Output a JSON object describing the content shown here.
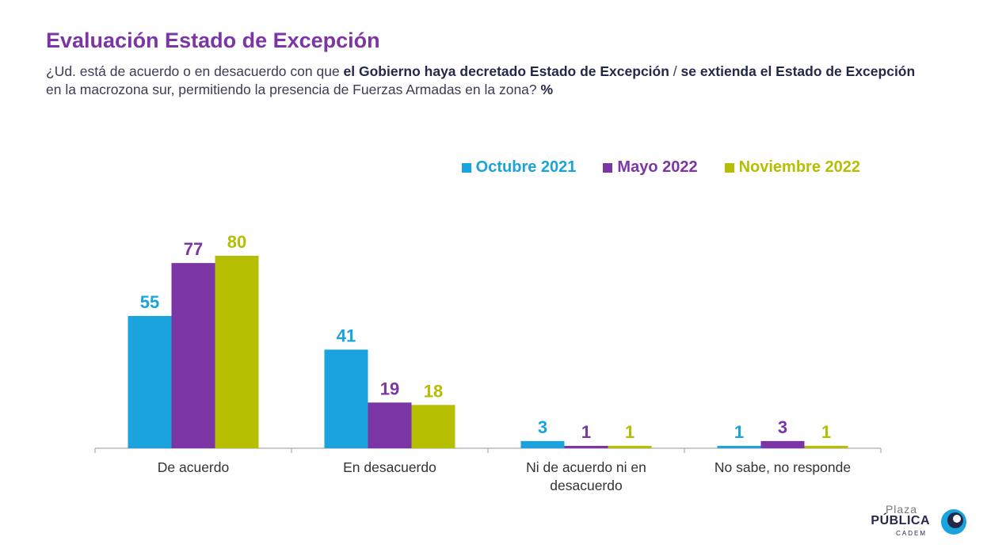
{
  "title": "Evaluación Estado de Excepción",
  "subtitle": {
    "part1": "¿Ud. está de acuerdo o en desacuerdo con que ",
    "bold1": "el Gobierno haya decretado Estado de Excepción",
    "part2": " / ",
    "bold2": "se extienda el Estado de Excepción",
    "part3": " en la macrozona sur, permitiendo la presencia de Fuerzas Armadas en la zona? ",
    "bold3": "%"
  },
  "logo": {
    "line1": "Plaza",
    "line2": "PÚBLICA",
    "line3": "CADEM"
  },
  "chart_data": {
    "type": "bar",
    "categories": [
      "De acuerdo",
      "En desacuerdo",
      "Ni de acuerdo ni en desacuerdo",
      "No sabe, no responde"
    ],
    "category_lines": [
      [
        "De acuerdo"
      ],
      [
        "En desacuerdo"
      ],
      [
        "Ni de acuerdo ni en",
        "desacuerdo"
      ],
      [
        "No sabe, no responde"
      ]
    ],
    "series": [
      {
        "name": "Octubre 2021",
        "color": "#1aa3dd",
        "values": [
          55,
          41,
          3,
          1
        ]
      },
      {
        "name": "Mayo 2022",
        "color": "#7b35a4",
        "values": [
          77,
          19,
          1,
          3
        ]
      },
      {
        "name": "Noviembre 2022",
        "color": "#b5be00",
        "values": [
          80,
          18,
          1,
          1
        ]
      }
    ],
    "ylim": [
      0,
      80
    ],
    "legend": "top-right",
    "grid": false
  }
}
